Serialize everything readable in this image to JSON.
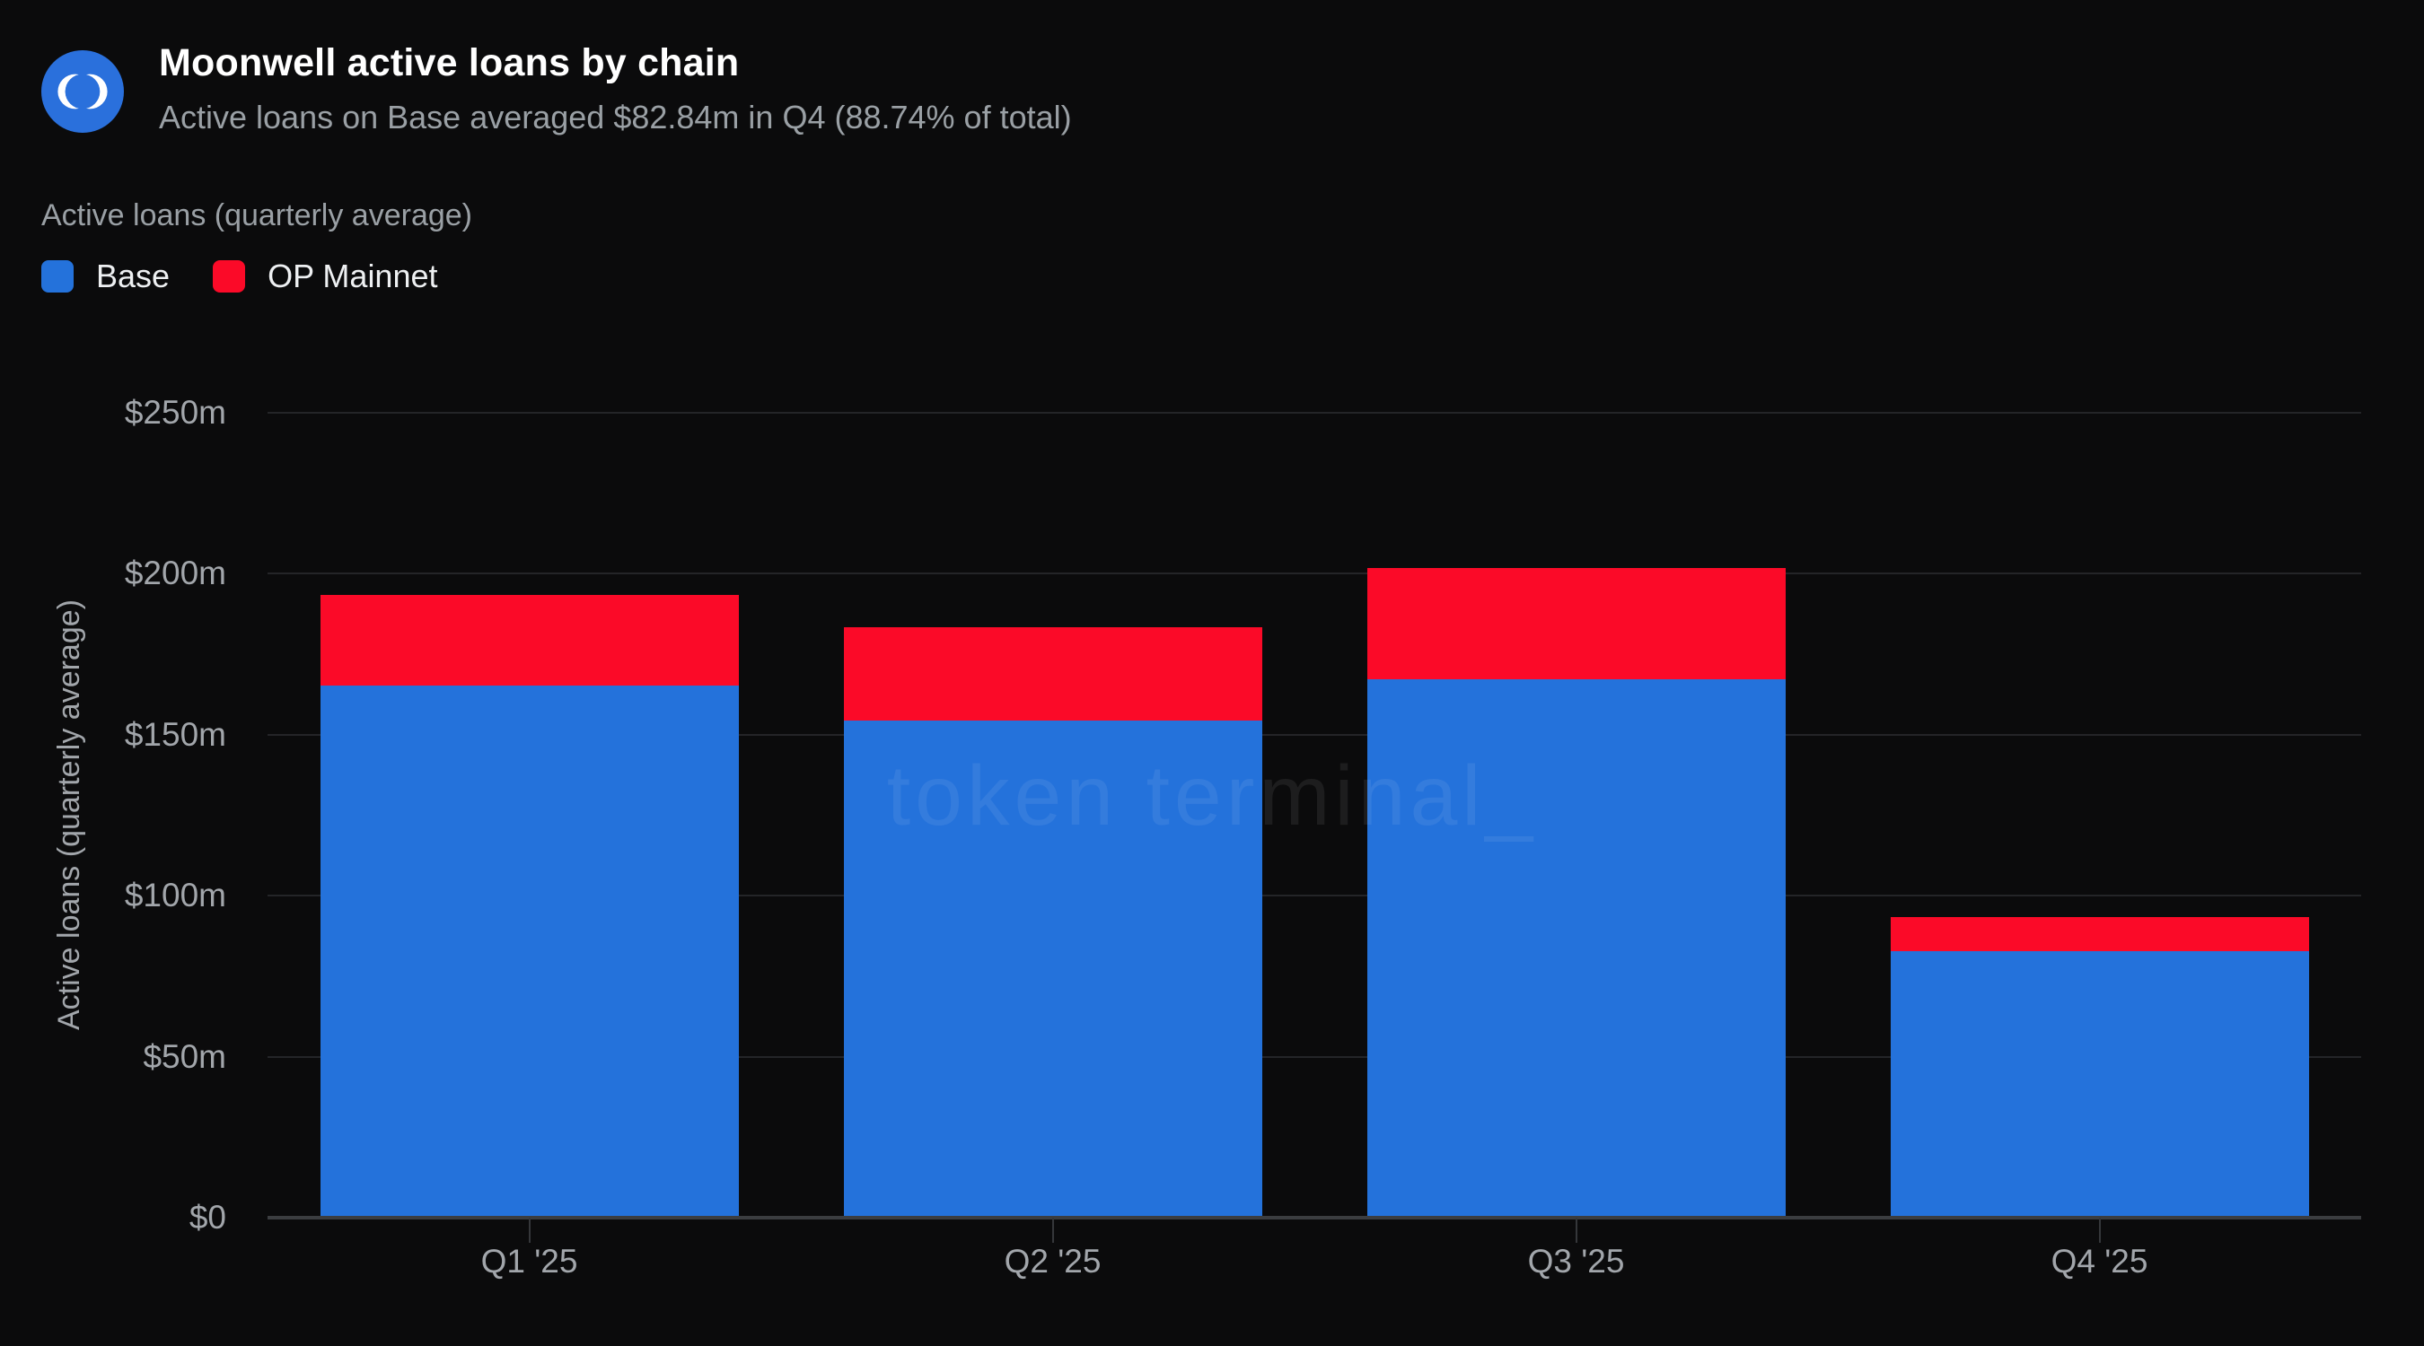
{
  "header": {
    "title": "Moonwell active loans by chain",
    "subtitle": "Active loans on Base averaged $82.84m in Q4 (88.74% of total)"
  },
  "legend": {
    "series_label": "Active loans (quarterly average)",
    "items": [
      {
        "label": "Base",
        "color": "#2472DB"
      },
      {
        "label": "OP Mainnet",
        "color": "#FB0A28"
      }
    ]
  },
  "watermark": "token terminal_",
  "colors": {
    "background": "#0b0b0c",
    "base_blue": "#2472DB",
    "op_red": "#FB0A28",
    "logo_blue": "#2a70dc",
    "muted_text": "#9aa0a5",
    "axis_text": "#a2a6ab"
  },
  "chart_data": {
    "type": "bar",
    "stacked": true,
    "title": "Moonwell active loans by chain",
    "categories": [
      "Q1 '25",
      "Q2 '25",
      "Q3 '25",
      "Q4 '25"
    ],
    "series": [
      {
        "name": "Base",
        "color": "#2472DB",
        "values": [
          165.4,
          154.5,
          167.3,
          82.84
        ]
      },
      {
        "name": "OP Mainnet",
        "color": "#FB0A28",
        "values": [
          28.1,
          29.0,
          34.5,
          10.55
        ]
      }
    ],
    "unit": "USD millions",
    "xlabel": "",
    "ylabel": "Active loans (quarterly average)",
    "ylim": [
      0,
      250
    ],
    "ytick_values": [
      0,
      50,
      100,
      150,
      200,
      250
    ],
    "yticks": [
      "$0",
      "$50m",
      "$100m",
      "$150m",
      "$200m",
      "$250m"
    ],
    "grid": true,
    "legend_position": "top-left"
  }
}
